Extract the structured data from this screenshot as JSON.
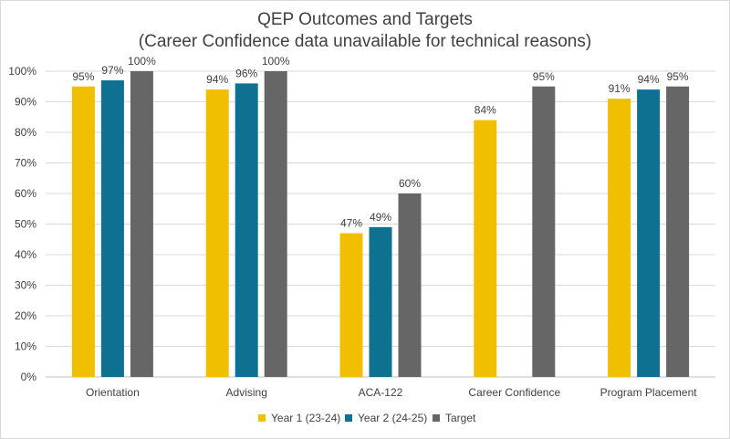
{
  "chart_data": {
    "type": "bar",
    "title": "QEP Outcomes and Targets",
    "subtitle": "(Career Confidence data unavailable for technical reasons)",
    "categories": [
      "Orientation",
      "Advising",
      "ACA-122",
      "Career Confidence",
      "Program Placement"
    ],
    "series": [
      {
        "name": "Year 1 (23-24)",
        "color": "#f0c000",
        "values": [
          95,
          94,
          47,
          84,
          91
        ]
      },
      {
        "name": "Year 2 (24-25)",
        "color": "#0e7192",
        "values": [
          97,
          96,
          49,
          null,
          94
        ]
      },
      {
        "name": "Target",
        "color": "#666666",
        "values": [
          100,
          100,
          60,
          95,
          95
        ]
      }
    ],
    "data_labels": [
      [
        "95%",
        "94%",
        "47%",
        "84%",
        "91%"
      ],
      [
        "97%",
        "96%",
        "49%",
        "",
        "94%"
      ],
      [
        "100%",
        "100%",
        "60%",
        "95%",
        "95%"
      ]
    ],
    "y_ticks": [
      "0%",
      "10%",
      "20%",
      "30%",
      "40%",
      "50%",
      "60%",
      "70%",
      "80%",
      "90%",
      "100%"
    ],
    "ylim": [
      0,
      100
    ],
    "grid": true,
    "legend_position": "bottom"
  }
}
